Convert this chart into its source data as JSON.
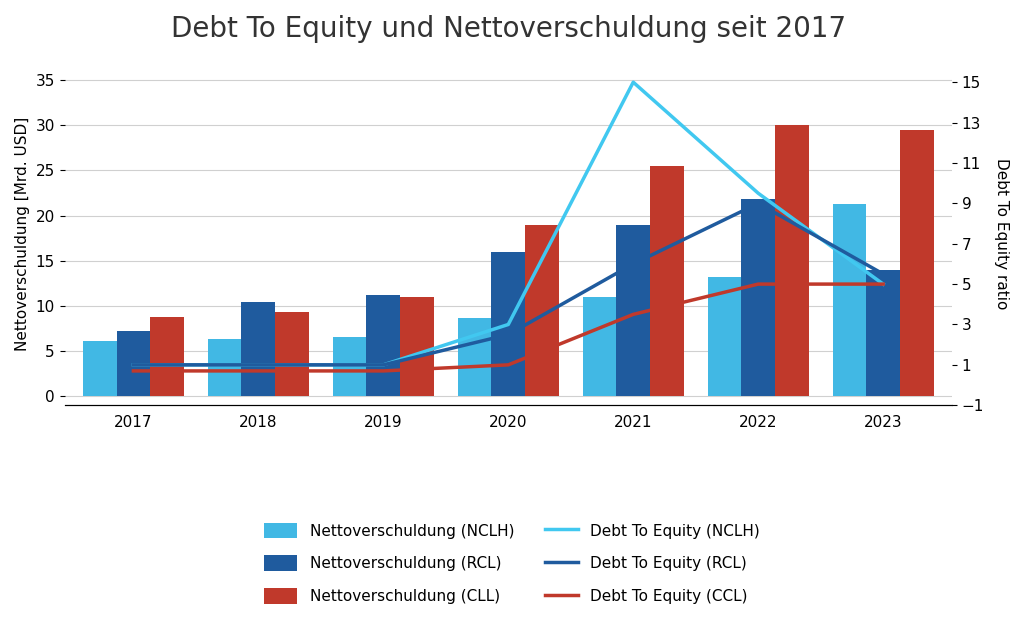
{
  "title": "Debt To Equity und Nettoverschuldung seit 2017",
  "years": [
    2017,
    2018,
    2019,
    2020,
    2021,
    2022,
    2023
  ],
  "bar_nclh": [
    6.1,
    6.3,
    6.6,
    8.7,
    11.0,
    13.2,
    21.3
  ],
  "bar_rcl": [
    7.2,
    10.4,
    11.2,
    16.0,
    19.0,
    21.8,
    14.0
  ],
  "bar_cll": [
    8.8,
    9.3,
    11.0,
    19.0,
    25.5,
    30.0,
    29.5
  ],
  "line_dte_nclh": [
    1.0,
    1.0,
    1.0,
    3.0,
    15.0,
    9.5,
    5.0
  ],
  "line_dte_rcl": [
    1.0,
    1.0,
    1.0,
    2.5,
    6.0,
    9.0,
    5.5
  ],
  "line_dte_ccl": [
    0.7,
    0.7,
    0.7,
    1.0,
    3.5,
    5.0,
    5.0
  ],
  "color_nclh_bar": "#41B8E4",
  "color_rcl_bar": "#1F5B9E",
  "color_cll_bar": "#C0392B",
  "color_nclh_line": "#41C8F0",
  "color_rcl_line": "#1F5B9E",
  "color_ccl_line": "#C0392B",
  "ylabel_left": "Nettoverschuldung [Mrd. USD]",
  "ylabel_right": "Debt To Equity ratio",
  "ylim_left": [
    -1,
    37
  ],
  "ylim_right": [
    -1,
    16
  ],
  "yticks_left": [
    0,
    5,
    10,
    15,
    20,
    25,
    30,
    35
  ],
  "yticks_right": [
    -1,
    1,
    3,
    5,
    7,
    9,
    11,
    13,
    15
  ],
  "background": "#FFFFFF",
  "title_fontsize": 20,
  "label_fontsize": 11,
  "tick_fontsize": 11,
  "legend_fontsize": 11
}
